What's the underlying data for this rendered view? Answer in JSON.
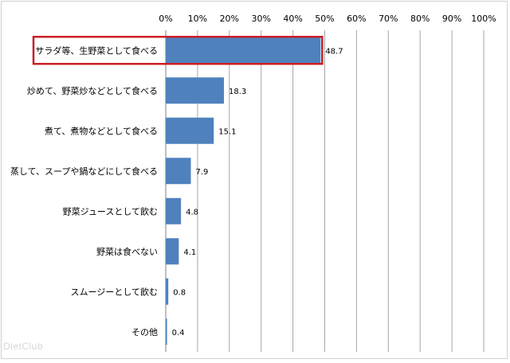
{
  "chart_data": {
    "type": "bar",
    "orientation": "horizontal",
    "categories": [
      "サラダ等、生野菜として食べる",
      "炒めて、野菜炒などとして食べる",
      "煮て、煮物などとして食べる",
      "蒸して、スープや鍋などにして食べる",
      "野菜ジュースとして飲む",
      "野菜は食べない",
      "スムージーとして飲む",
      "その他"
    ],
    "values": [
      48.7,
      18.3,
      15.1,
      7.9,
      4.8,
      4.1,
      0.8,
      0.4
    ],
    "value_labels": [
      "48.7",
      "18.3",
      "15.1",
      "7.9",
      "4.8",
      "4.1",
      "0.8",
      "0.4"
    ],
    "xlim": [
      0,
      100
    ],
    "tick_labels": [
      "0%",
      "10%",
      "20%",
      "30%",
      "40%",
      "50%",
      "60%",
      "70%",
      "80%",
      "90%",
      "100%"
    ],
    "axis_position": "top",
    "grid": true,
    "highlighted_category_index": 0,
    "colors": {
      "bar": "#4f81bd",
      "highlight": "#cc1f26",
      "grid": "#a6a6a6",
      "text": "#000000"
    }
  },
  "watermark": "DietClub"
}
